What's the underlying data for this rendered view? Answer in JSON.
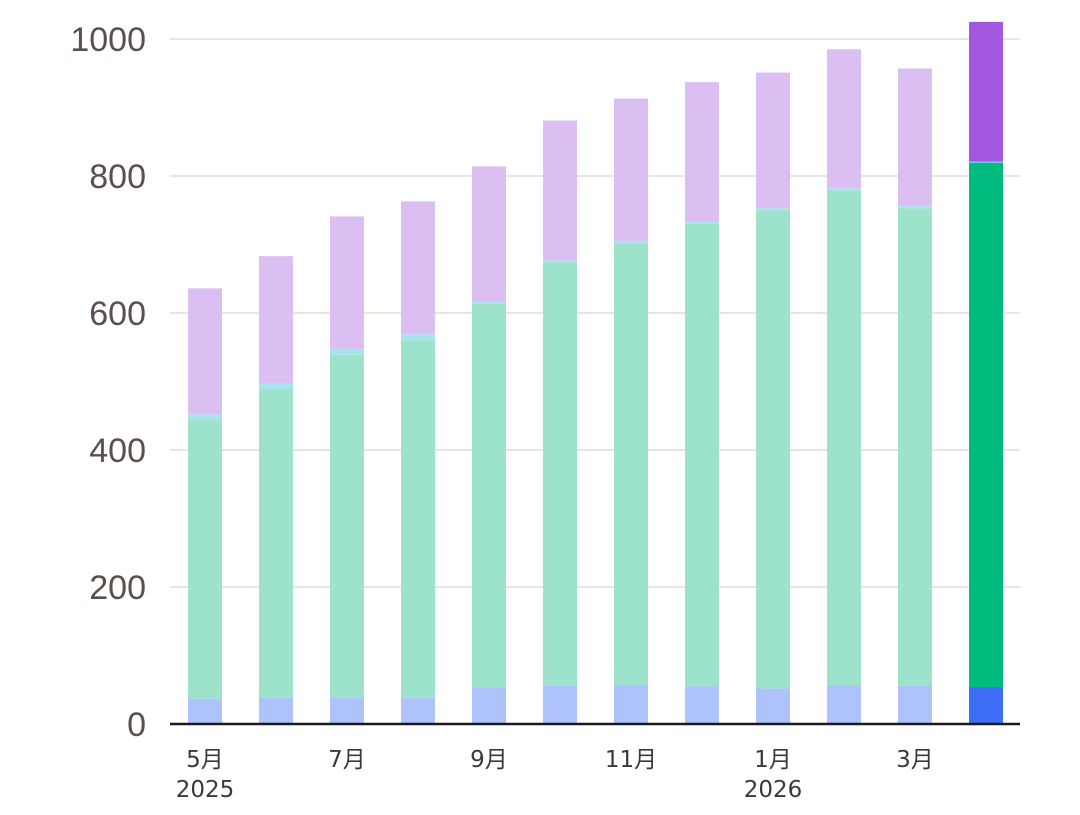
{
  "chart_data": {
    "type": "bar",
    "stacked": true,
    "title": "",
    "xlabel": "",
    "ylabel": "",
    "ylim": [
      0,
      1000
    ],
    "yticks": [
      0,
      200,
      400,
      600,
      800,
      1000
    ],
    "grid": true,
    "legend": "none",
    "categories": [
      "2025-05",
      "2025-06",
      "2025-07",
      "2025-08",
      "2025-09",
      "2025-10",
      "2025-11",
      "2025-12",
      "2026-01",
      "2026-02",
      "2026-03",
      "2026-04"
    ],
    "tick_labels": [
      {
        "index": 0,
        "lines": [
          "5月",
          "2025"
        ]
      },
      {
        "index": 2,
        "lines": [
          "7月"
        ]
      },
      {
        "index": 4,
        "lines": [
          "9月"
        ]
      },
      {
        "index": 6,
        "lines": [
          "11月"
        ]
      },
      {
        "index": 8,
        "lines": [
          "1月",
          "2026"
        ]
      },
      {
        "index": 10,
        "lines": [
          "3月"
        ]
      }
    ],
    "highlight_index": 11,
    "series": [
      {
        "name": "blue",
        "color": "#3d6ef5",
        "faded_color": "#aec3fb",
        "values": [
          37,
          38,
          39,
          38,
          53,
          56,
          57,
          55,
          52,
          57,
          56,
          54
        ]
      },
      {
        "name": "green",
        "color": "#00bb7e",
        "faded_color": "#9de3cb",
        "values": [
          406,
          451,
          500,
          522,
          560,
          618,
          645,
          675,
          698,
          722,
          697,
          765
        ]
      },
      {
        "name": "cyan",
        "color": "#66cfe0",
        "faded_color": "#a9e4ec",
        "values": [
          9,
          8,
          9,
          9,
          3,
          3,
          3,
          3,
          3,
          3,
          3,
          2
        ]
      },
      {
        "name": "purple",
        "color": "#a259e0",
        "faded_color": "#dbbef2",
        "values": [
          184,
          186,
          193,
          194,
          198,
          204,
          208,
          204,
          198,
          203,
          201,
          204
        ]
      }
    ]
  }
}
